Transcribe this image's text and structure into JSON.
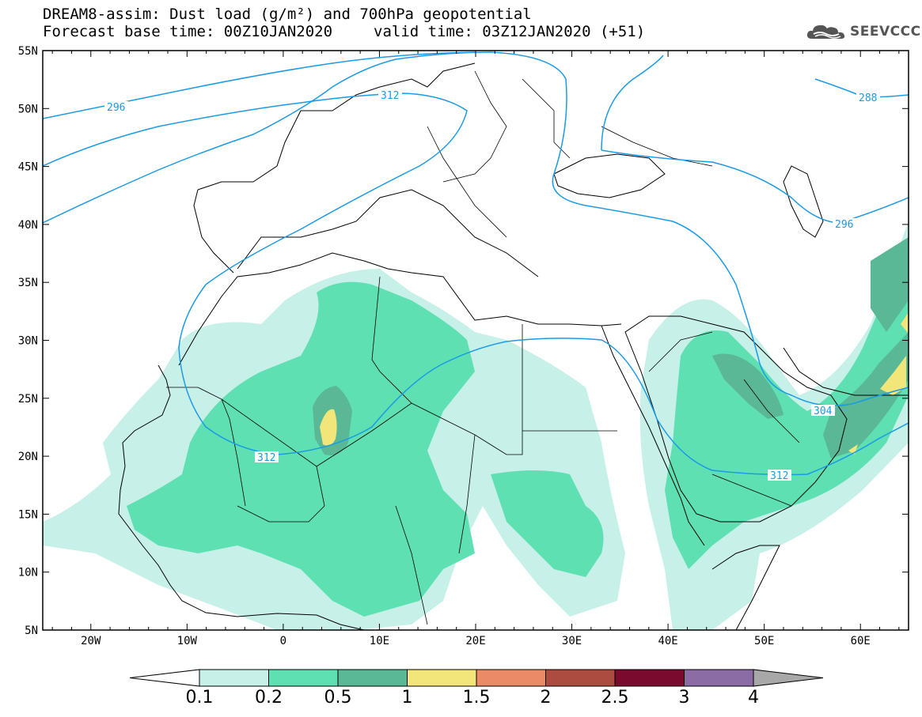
{
  "title": {
    "line1": "DREAM8-assim: Dust load (g/m²) and 700hPa geopotential",
    "base_time": "Forecast base time: 00Z10JAN2020",
    "valid_time": "valid time: 03Z12JAN2020 (+51)"
  },
  "logo": {
    "icon": "cloud-icon",
    "text": "SEEVCCC"
  },
  "map": {
    "lon_ticks": [
      "20W",
      "10W",
      "0",
      "10E",
      "20E",
      "30E",
      "40E",
      "50E",
      "60E"
    ],
    "lat_ticks": [
      "55N",
      "50N",
      "45N",
      "40N",
      "35N",
      "30N",
      "25N",
      "20N",
      "15N",
      "10N",
      "5N"
    ],
    "contour_labels": [
      "296",
      "312",
      "288",
      "296",
      "312",
      "304",
      "312"
    ],
    "dust_colors": [
      "#c6f0e8",
      "#5ee0b2",
      "#5ab896",
      "#f2e67a",
      "#ea8a66",
      "#ac4c40",
      "#7a0a2e",
      "#8c6ca4"
    ]
  },
  "colorbar": {
    "labels": [
      "0.1",
      "0.2",
      "0.5",
      "1",
      "1.5",
      "2",
      "2.5",
      "3",
      "4"
    ],
    "colors": [
      "#c6f0e8",
      "#5ee0b2",
      "#5ab896",
      "#f2e67a",
      "#ea8a66",
      "#ac4c40",
      "#7a0a2e",
      "#8c6ca4"
    ],
    "low_end_color": "#ffffff",
    "high_end_color": "#a8a8a8"
  }
}
